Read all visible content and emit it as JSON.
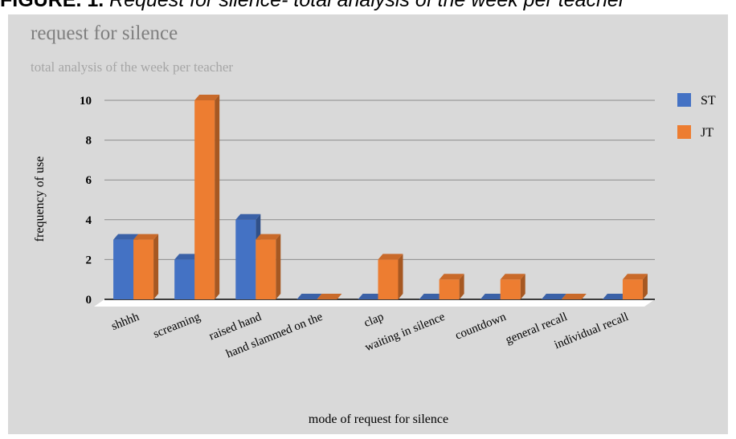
{
  "banner": {
    "lead": "FIGURE. 1.",
    "text": "Request for silence- total analysis of the week per teacher"
  },
  "chart_data": {
    "type": "bar",
    "title": "request for silence",
    "subtitle": "total analysis of the week per teacher",
    "xlabel": "mode of request for silence",
    "ylabel": "frequency of use",
    "ylim": [
      0,
      10
    ],
    "yticks": [
      0,
      2,
      4,
      6,
      8,
      10
    ],
    "grid": true,
    "legend_position": "right",
    "categories": [
      "shhhh",
      "screaming",
      "raised hand",
      "hand slammed on the",
      "clap",
      "waiting in silence",
      "countdown",
      "general recall",
      "individual recall"
    ],
    "series": [
      {
        "name": "ST",
        "color": "#4472c4",
        "values": [
          3,
          2,
          4,
          0,
          0,
          0,
          0,
          0,
          0
        ]
      },
      {
        "name": "JT",
        "color": "#ed7d31",
        "values": [
          3,
          10,
          3,
          0,
          2,
          1,
          1,
          0,
          1
        ]
      }
    ]
  }
}
